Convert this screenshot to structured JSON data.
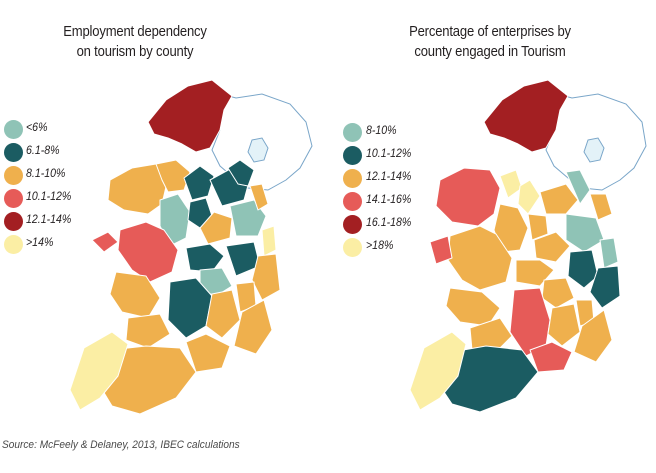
{
  "maps": {
    "left": {
      "title_line1": "Employment dependency",
      "title_line2": "on tourism by county",
      "legend": [
        {
          "label": "<6%",
          "color": "#8fc3b6"
        },
        {
          "label": "6.1-8%",
          "color": "#1b5c62"
        },
        {
          "label": "8.1-10%",
          "color": "#efb04d"
        },
        {
          "label": "10.1-12%",
          "color": "#e65b58"
        },
        {
          "label": "12.1-14%",
          "color": "#a31f22"
        },
        {
          "label": ">14%",
          "color": "#fbeea4"
        }
      ]
    },
    "right": {
      "title_line1": "Percentage of enterprises by",
      "title_line2": "county engaged in Tourism",
      "legend": [
        {
          "label": "8-10%",
          "color": "#8fc3b6"
        },
        {
          "label": "10.1-12%",
          "color": "#1b5c62"
        },
        {
          "label": "12.1-14%",
          "color": "#efb04d"
        },
        {
          "label": "14.1-16%",
          "color": "#e65b58"
        },
        {
          "label": "16.1-18%",
          "color": "#a31f22"
        },
        {
          "label": ">18%",
          "color": "#fbeea4"
        }
      ]
    }
  },
  "colors": {
    "northern_ireland_fill": "#ffffff",
    "northern_ireland_outline": "#7aa6c9",
    "lough_fill": "#e3f2f8"
  },
  "source": "Source: McFeely & Delaney, 2013, IBEC calculations"
}
